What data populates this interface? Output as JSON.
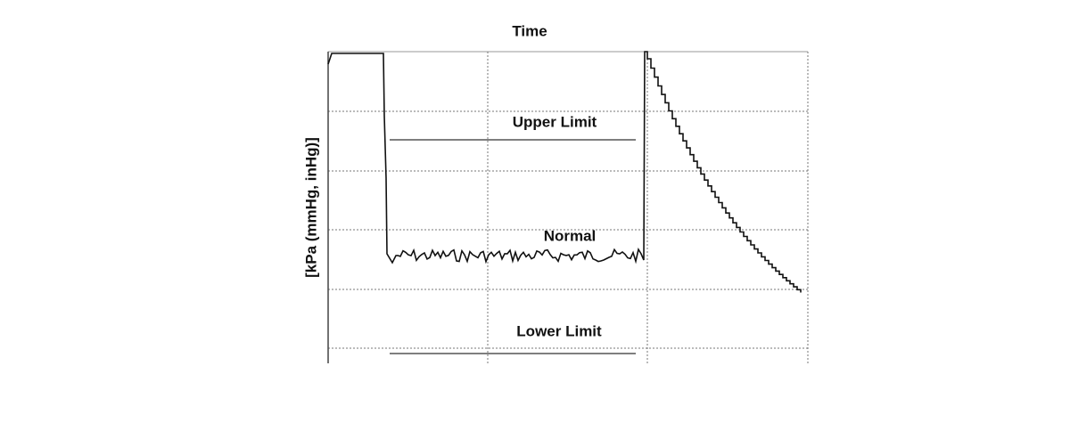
{
  "title": "Time",
  "y_axis_label": "[kPa (mmHg, inHg)]",
  "annotations": {
    "upper": "Upper Limit",
    "normal": "Normal",
    "lower": "Lower Limit"
  }
}
